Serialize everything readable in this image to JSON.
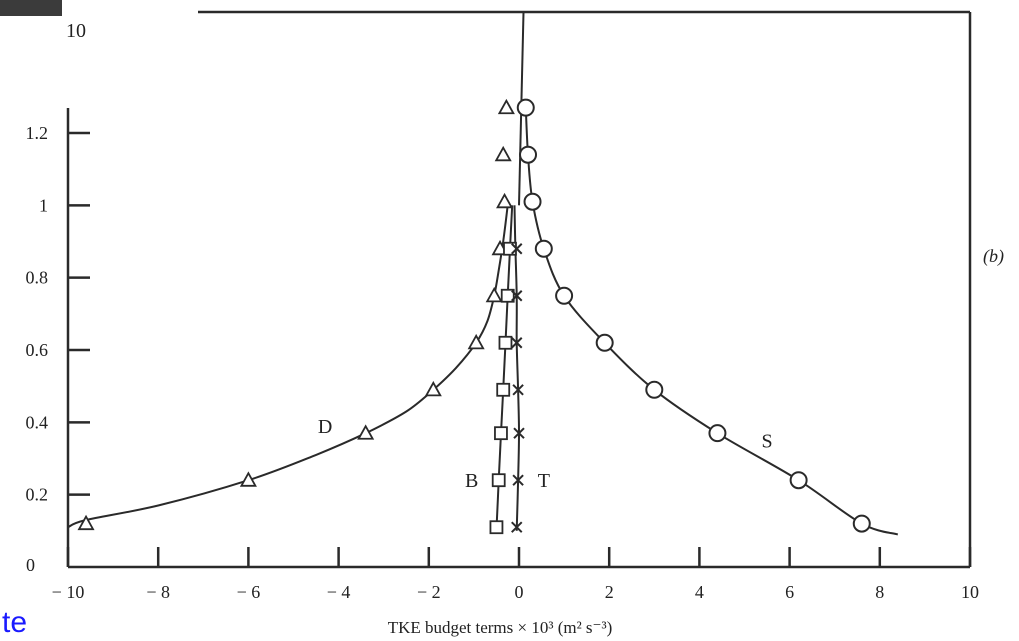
{
  "fragments": {
    "corner_number": "10",
    "link_text": "te",
    "panel_label": "(b)"
  },
  "chart_data": {
    "type": "scatter",
    "title": "",
    "xlabel": "TKE budget terms × 10³ (m² s⁻³)",
    "ylabel": "",
    "xlim": [
      -10,
      10
    ],
    "ylim": [
      0,
      1.3
    ],
    "x_ticks": [
      -10,
      -8,
      -6,
      -4,
      -2,
      0,
      2,
      4,
      6,
      8,
      10
    ],
    "x_tick_labels": [
      "− 10",
      "− 8",
      "− 6",
      "− 4",
      "− 2",
      "0",
      "2",
      "4",
      "6",
      "8",
      "10"
    ],
    "y_ticks": [
      0,
      0.2,
      0.4,
      0.6,
      0.8,
      1,
      1.2
    ],
    "y_tick_labels": [
      "0",
      "0.2",
      "0.4",
      "0.6",
      "0.8",
      "1",
      "1.2"
    ],
    "grid": false,
    "legend": "none",
    "series": [
      {
        "name": "D",
        "marker": "triangle",
        "x": [
          -9.6,
          -6.0,
          -3.4,
          -1.9,
          -0.95,
          -0.55,
          -0.42,
          -0.32,
          -0.35,
          -0.28
        ],
        "y": [
          0.12,
          0.24,
          0.37,
          0.49,
          0.62,
          0.75,
          0.88,
          1.01,
          1.14,
          1.27
        ],
        "curve": {
          "x": [
            -10.0,
            -9.6,
            -8.0,
            -6.0,
            -4.5,
            -3.4,
            -2.5,
            -1.9,
            -1.4,
            -0.95,
            -0.7,
            -0.55,
            -0.45,
            -0.35,
            -0.25
          ],
          "y": [
            0.11,
            0.13,
            0.17,
            0.24,
            0.31,
            0.37,
            0.43,
            0.49,
            0.55,
            0.62,
            0.68,
            0.75,
            0.82,
            0.9,
            1.0
          ]
        }
      },
      {
        "name": "B",
        "marker": "square",
        "x": [
          -0.5,
          -0.45,
          -0.4,
          -0.35,
          -0.3,
          -0.25,
          -0.2
        ],
        "y": [
          0.11,
          0.24,
          0.37,
          0.49,
          0.62,
          0.75,
          0.88
        ],
        "curve": {
          "x": [
            -0.5,
            -0.45,
            -0.4,
            -0.35,
            -0.3,
            -0.25,
            -0.2,
            -0.15
          ],
          "y": [
            0.1,
            0.24,
            0.37,
            0.49,
            0.62,
            0.75,
            0.88,
            1.0
          ]
        }
      },
      {
        "name": "T",
        "marker": "x",
        "x": [
          -0.05,
          -0.02,
          0.0,
          -0.02,
          -0.05,
          -0.05,
          -0.05
        ],
        "y": [
          0.11,
          0.24,
          0.37,
          0.49,
          0.62,
          0.75,
          0.88
        ],
        "curve": {
          "x": [
            -0.05,
            -0.02,
            0.0,
            -0.02,
            -0.05,
            -0.05,
            -0.08,
            -0.1
          ],
          "y": [
            0.1,
            0.24,
            0.37,
            0.49,
            0.62,
            0.75,
            0.88,
            1.0
          ]
        }
      },
      {
        "name": "S",
        "marker": "circle",
        "x": [
          7.6,
          6.2,
          4.4,
          3.0,
          1.9,
          1.0,
          0.55,
          0.3,
          0.2,
          0.15
        ],
        "y": [
          0.12,
          0.24,
          0.37,
          0.49,
          0.62,
          0.75,
          0.88,
          1.01,
          1.14,
          1.27
        ],
        "curve": {
          "x": [
            8.4,
            7.6,
            6.2,
            4.4,
            3.0,
            1.9,
            1.0,
            0.55,
            0.3,
            0.2,
            0.15
          ],
          "y": [
            0.09,
            0.12,
            0.24,
            0.37,
            0.49,
            0.62,
            0.75,
            0.88,
            1.01,
            1.14,
            1.27
          ]
        }
      }
    ],
    "reference_line": {
      "x": [
        0.0,
        0.1
      ],
      "y": [
        1.0,
        1.3
      ]
    },
    "curve_labels": [
      {
        "text": "D",
        "x": -4.3,
        "y": 0.39
      },
      {
        "text": "B",
        "x": -1.05,
        "y": 0.24
      },
      {
        "text": "T",
        "x": 0.55,
        "y": 0.24
      },
      {
        "text": "S",
        "x": 5.5,
        "y": 0.35
      }
    ]
  }
}
